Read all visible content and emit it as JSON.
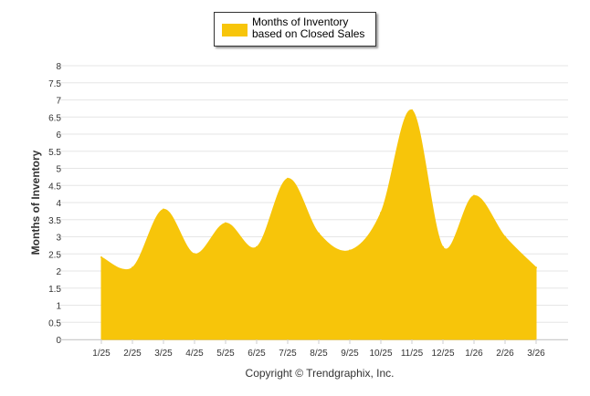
{
  "chart_data": {
    "type": "area",
    "title": "",
    "xlabel": "",
    "ylabel": "Months of Inventory",
    "categories": [
      "1/25",
      "2/25",
      "3/25",
      "4/25",
      "5/25",
      "6/25",
      "7/25",
      "8/25",
      "9/25",
      "10/25",
      "11/25",
      "12/25",
      "1/26",
      "2/26",
      "3/26"
    ],
    "series": [
      {
        "name": "Months of Inventory based on Closed Sales",
        "values": [
          2.4,
          2.1,
          3.8,
          2.5,
          3.4,
          2.7,
          4.7,
          3.1,
          2.6,
          3.7,
          6.7,
          2.7,
          4.2,
          3.0,
          2.1
        ],
        "color": "#F7C50A"
      }
    ],
    "ylim": [
      0,
      8
    ],
    "yticks": [
      "0",
      "0.5",
      "1",
      "1.5",
      "2",
      "2.5",
      "3",
      "3.5",
      "4",
      "4.5",
      "5",
      "5.5",
      "6",
      "6.5",
      "7",
      "7.5",
      "8"
    ],
    "grid": true,
    "legend_position": "top-center"
  },
  "legend": {
    "label": "Months of Inventory based on Closed Sales"
  },
  "credit": "Copyright © Trendgraphix, Inc."
}
